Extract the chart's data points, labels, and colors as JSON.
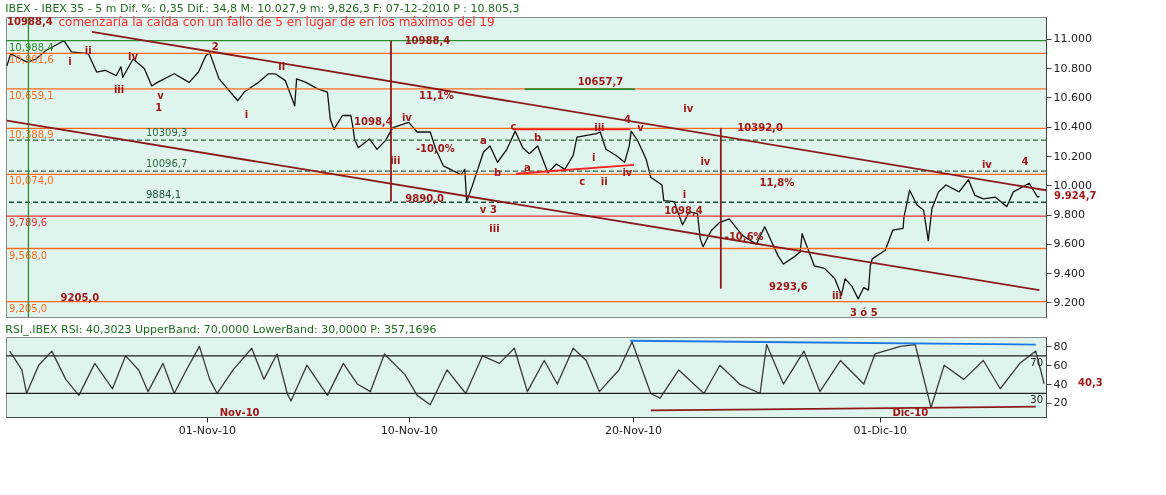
{
  "chart_data": [
    {
      "type": "line",
      "title": "IBEX - IBEX 35 -  5 m Dif. %: 0,35 Dif.: 34,8 M: 10.027,9 m: 9,826,3 F: 07-12-2010 P : 10.805,3",
      "xlim": [
        "2010-10-23T01:00",
        "2010-12-08T10:00"
      ],
      "ylim": [
        9100,
        11150
      ],
      "yticks": [
        {
          "value": 9200,
          "label": "9.200"
        },
        {
          "value": 9400,
          "label": "9.400"
        },
        {
          "value": 9600,
          "label": "9.600"
        },
        {
          "value": 9800,
          "label": "9.800"
        },
        {
          "value": 10000,
          "label": "10.000"
        },
        {
          "value": 10200,
          "label": "10.200"
        },
        {
          "value": 10400,
          "label": "10.400"
        },
        {
          "value": 10600,
          "label": "10.600"
        },
        {
          "value": 10800,
          "label": "10.800"
        },
        {
          "value": 11000,
          "label": "11.000"
        }
      ],
      "tick_labels": "y",
      "series": [
        {
          "color": "#111111",
          "x": [
            "2010-10-23T02:00",
            "2010-10-23T06:00",
            "2010-10-24T00:00",
            "2010-10-24T09:00",
            "2010-10-24T20:00",
            "2010-10-25T15:00",
            "2010-10-25T23:00",
            "2010-10-26T17:00",
            "2010-10-27T02:00",
            "2010-10-27T11:00",
            "2010-10-27T23:00",
            "2010-10-28T04:00",
            "2010-10-28T06:00",
            "2010-10-28T17:00",
            "2010-10-29T05:00",
            "2010-10-29T13:00",
            "2010-10-29T19:00",
            "2010-10-30T13:00",
            "2010-10-31T05:00",
            "2010-10-31T15:00",
            "2010-10-31T23:00",
            "2010-11-01T03:00",
            "2010-11-01T13:00",
            "2010-11-02T09:00",
            "2010-11-02T16:00",
            "2010-11-03T07:00",
            "2010-11-03T18:00",
            "2010-11-04T01:00",
            "2010-11-04T12:00",
            "2010-11-04T22:00",
            "2010-11-05T00:00",
            "2010-11-05T10:00",
            "2010-11-05T22:00",
            "2010-11-06T09:00",
            "2010-11-06T12:00",
            "2010-11-06T16:00",
            "2010-11-07T01:00",
            "2010-11-07T10:00",
            "2010-11-07T12:00",
            "2010-11-07T14:00",
            "2010-11-07T18:00",
            "2010-11-08T06:00",
            "2010-11-08T14:00",
            "2010-11-08T23:00",
            "2010-11-09T07:00",
            "2010-11-10T00:00",
            "2010-11-10T09:00",
            "2010-11-10T23:00",
            "2010-11-11T05:00",
            "2010-11-11T13:00",
            "2010-11-12T08:00",
            "2010-11-12T12:00",
            "2010-11-12T14:00",
            "2010-11-12T20:00",
            "2010-11-13T08:00",
            "2010-11-13T15:00",
            "2010-11-13T23:00",
            "2010-11-14T09:00",
            "2010-11-14T18:00",
            "2010-11-15T02:00",
            "2010-11-15T09:00",
            "2010-11-15T18:00",
            "2010-11-16T05:00",
            "2010-11-16T14:00",
            "2010-11-16T23:00",
            "2010-11-17T08:00",
            "2010-11-17T12:00",
            "2010-11-18T09:00",
            "2010-11-18T13:00",
            "2010-11-18T19:00",
            "2010-11-19T06:00",
            "2010-11-19T15:00",
            "2010-11-19T20:00",
            "2010-11-19T22:00",
            "2010-11-20T05:00",
            "2010-11-20T14:00",
            "2010-11-20T19:00",
            "2010-11-21T07:00",
            "2010-11-21T09:00",
            "2010-11-21T20:00",
            "2010-11-22T05:00",
            "2010-11-22T12:00",
            "2010-11-22T21:00",
            "2010-11-23T00:00",
            "2010-11-23T03:00",
            "2010-11-23T12:00",
            "2010-11-23T21:00",
            "2010-11-24T07:00",
            "2010-11-24T21:00",
            "2010-11-25T12:00",
            "2010-11-25T21:00",
            "2010-11-26T11:00",
            "2010-11-26T17:00",
            "2010-11-27T04:00",
            "2010-11-27T11:00",
            "2010-11-27T13:00",
            "2010-11-28T02:00",
            "2010-11-28T13:00",
            "2010-11-29T00:00",
            "2010-11-29T07:00",
            "2010-11-29T11:00",
            "2010-11-29T18:00",
            "2010-11-30T01:00",
            "2010-11-30T07:00",
            "2010-11-30T12:00",
            "2010-11-30T14:00",
            "2010-11-30T16:00",
            "2010-12-01T06:00",
            "2010-12-01T14:00",
            "2010-12-02T01:00",
            "2010-12-02T02:00",
            "2010-12-02T08:00",
            "2010-12-02T16:00",
            "2010-12-02T23:00",
            "2010-12-03T04:00",
            "2010-12-03T08:00",
            "2010-12-03T15:00",
            "2010-12-03T23:00",
            "2010-12-04T13:00",
            "2010-12-04T23:00",
            "2010-12-05T06:00",
            "2010-12-05T15:00",
            "2010-12-06T04:00",
            "2010-12-06T16:00",
            "2010-12-06T23:00",
            "2010-12-07T16:00",
            "2010-12-08T01:00",
            "2010-12-08T03:00"
          ],
          "values": [
            10816,
            10899,
            10840,
            10863,
            10923,
            10988,
            10911,
            10899,
            10774,
            10786,
            10750,
            10810,
            10738,
            10863,
            10798,
            10679,
            10703,
            10762,
            10703,
            10774,
            10887,
            10905,
            10727,
            10578,
            10637,
            10703,
            10762,
            10762,
            10715,
            10543,
            10727,
            10703,
            10661,
            10637,
            10453,
            10382,
            10477,
            10477,
            10406,
            10317,
            10257,
            10317,
            10246,
            10305,
            10394,
            10430,
            10364,
            10364,
            10246,
            10133,
            10073,
            10109,
            9889,
            9996,
            10228,
            10269,
            10157,
            10246,
            10370,
            10257,
            10216,
            10269,
            10085,
            10145,
            10109,
            10204,
            10329,
            10353,
            10364,
            10246,
            10204,
            10157,
            10269,
            10370,
            10305,
            10180,
            10055,
            10002,
            9895,
            9889,
            9729,
            9818,
            9806,
            9634,
            9580,
            9693,
            9747,
            9770,
            9658,
            9598,
            9717,
            9521,
            9462,
            9509,
            9545,
            9669,
            9450,
            9432,
            9361,
            9248,
            9361,
            9313,
            9224,
            9301,
            9284,
            9450,
            9497,
            9556,
            9693,
            9705,
            9782,
            9966,
            9865,
            9830,
            9622,
            9842,
            9955,
            10002,
            9955,
            10038,
            9931,
            9907,
            9919,
            9854,
            9955,
            10014,
            9919,
            9925
          ]
        },
        {
          "color": "#8b1a1a",
          "x": [
            "2010-10-26T21:00",
            "2010-12-08T10:00"
          ],
          "values": [
            11049,
            9966
          ]
        },
        {
          "color": "#8b1a1a",
          "x": [
            "2010-10-23T02:00",
            "2010-12-08T03:00"
          ],
          "values": [
            10442,
            9283
          ]
        },
        {
          "color": "#ff2020",
          "x": [
            "2010-11-14T16:00",
            "2010-11-19T21:00"
          ],
          "values": [
            10382,
            10382
          ]
        },
        {
          "color": "#ff2020",
          "x": [
            "2010-11-14T19:00",
            "2010-11-20T01:00"
          ],
          "values": [
            10079,
            10139
          ]
        },
        {
          "color": "#2e8b2e",
          "x": [
            "2010-11-15T04:00",
            "2010-11-20T02:00"
          ],
          "values": [
            10657.7,
            10657.7
          ]
        },
        {
          "color": "#8b1a1a",
          "x": [
            "2010-11-09T05:00",
            "2010-11-09T05:00"
          ],
          "values": [
            10988.4,
            9890.0
          ]
        },
        {
          "color": "#8b1a1a",
          "x": [
            "2010-11-23T22:00",
            "2010-11-23T22:00"
          ],
          "values": [
            10392.0,
            9293.6
          ]
        }
      ],
      "ref_lines": [
        {
          "axis": "y",
          "value": 10988.4,
          "label": "10,988,4",
          "color": "#2e8b2e"
        },
        {
          "axis": "y",
          "value": 10901.6,
          "label": "10,901,6",
          "color": "#ff6a1a"
        },
        {
          "axis": "y",
          "value": 10659.1,
          "label": "10,659,1",
          "color": "#ff6a1a"
        },
        {
          "axis": "y",
          "value": 10388.9,
          "label": "10,388,9",
          "color": "#ff6a1a"
        },
        {
          "axis": "y",
          "value": 10309.3,
          "label": "10309,3",
          "color": "#2e6b3e",
          "line_style": "dashed"
        },
        {
          "axis": "y",
          "value": 10096.7,
          "label": "10096,7",
          "color": "#2e6b3e",
          "line_style": "dashed"
        },
        {
          "axis": "y",
          "value": 10074.0,
          "label": "10,074,0",
          "color": "#ff6a1a"
        },
        {
          "axis": "y",
          "value": 9884.1,
          "label": "9884,1",
          "color": "#1f4f3f",
          "line_style": "dashed"
        },
        {
          "axis": "y",
          "value": 9789.6,
          "label": "9,789,6",
          "color": "#e83030"
        },
        {
          "axis": "y",
          "value": 9568.0,
          "label": "9,568,0",
          "color": "#ff6a1a"
        },
        {
          "axis": "y",
          "value": 9205.0,
          "label": "9,205,0",
          "color": "#ff6a1a"
        },
        {
          "axis": "x",
          "value": "2010-10-24T01:00",
          "color": "#2e8b2e"
        }
      ],
      "annotations": [
        "comenzaría la caída con un fallo de 5 en lugar de en los máximos del 19",
        "10988,4",
        {
          "text": "9205,0",
          "x": "2010-10-26T08:00",
          "y": 9230
        },
        "i",
        {
          "text": "ii",
          "x": "2010-10-26T17:00",
          "y": 10920
        },
        {
          "text": "iii",
          "x": "2010-10-28T02:00",
          "y": 10650
        },
        {
          "text": "iv",
          "x": "2010-10-28T17:00",
          "y": 10875
        },
        "v",
        "1",
        {
          "text": "2",
          "x": "2010-11-01T09:00",
          "y": 10947
        },
        "i",
        "ii",
        "iii",
        {
          "text": "iv",
          "x": "2010-11-09T22:00",
          "y": 10459
        },
        "1098,4",
        {
          "text": "10988,4",
          "x": "2010-11-10T20:00",
          "y": 10988
        },
        "11,1%",
        "-10,0%",
        {
          "text": "9890,0",
          "x": "2010-11-10T17:00",
          "y": 9907
        },
        "v",
        "3",
        "iii",
        {
          "text": "a",
          "x": "2010-11-13T08:00",
          "y": 10305
        },
        {
          "text": "b",
          "x": "2010-11-13T23:00",
          "y": 10085
        },
        {
          "text": "c",
          "x": "2010-11-14T16:00",
          "y": 10400
        },
        {
          "text": "a",
          "x": "2010-11-15T07:00",
          "y": 10115
        },
        {
          "text": "b",
          "x": "2010-11-15T18:00",
          "y": 10323
        },
        "c",
        "i",
        "ii",
        {
          "text": "iii",
          "x": "2010-11-18T12:00",
          "y": 10394
        },
        {
          "text": "iv",
          "x": "2010-11-19T18:00",
          "y": 10085
        },
        {
          "text": "4",
          "x": "2010-11-19T18:00",
          "y": 10448
        },
        "iv",
        {
          "text": "v",
          "x": "2010-11-20T08:00",
          "y": 10394
        },
        "iv",
        "i",
        "10657,7",
        "11,8%",
        {
          "text": "1098,4",
          "x": "2010-11-22T06:00",
          "y": 9824
        },
        {
          "text": "-10,6%",
          "x": "2010-11-24T23:00",
          "y": 9646
        },
        {
          "text": "10392,0",
          "x": "2010-11-25T16:00",
          "y": 10394
        },
        "9293,6",
        "iii",
        "3 ó 5",
        "iv",
        "4",
        "9.924,7"
      ]
    },
    {
      "type": "line",
      "title": "RSI_.IBEX RSI: 40,3023 UpperBand: 70,0000 LowerBand: 30,0000 P: 357,1696",
      "xlim": [
        "2010-10-23T01:00",
        "2010-12-08T10:00"
      ],
      "ylim": [
        5,
        90
      ],
      "xticks": [
        {
          "value": "2010-11-01T00:00",
          "label": "01-Nov-10"
        },
        {
          "value": "2010-11-10T00:00",
          "label": "10-Nov-10"
        },
        {
          "value": "2010-11-20T00:00",
          "label": "20-Nov-10"
        },
        {
          "value": "2010-12-01T00:00",
          "label": "01-Dic-10"
        }
      ],
      "yticks": [
        20,
        40,
        60,
        80
      ],
      "series": [
        {
          "color": "#3a3a3a",
          "x": [
            "2010-10-23T05:00",
            "2010-10-23T18:00",
            "2010-10-23T23:00",
            "2010-10-24T12:00",
            "2010-10-25T02:00",
            "2010-10-25T17:00",
            "2010-10-26T07:00",
            "2010-10-27T00:00",
            "2010-10-27T19:00",
            "2010-10-28T09:00",
            "2010-10-28T23:00",
            "2010-10-29T09:00",
            "2010-10-30T01:00",
            "2010-10-30T13:00",
            "2010-10-31T02:00",
            "2010-10-31T16:00",
            "2010-11-01T03:00",
            "2010-11-01T11:00",
            "2010-11-02T04:00",
            "2010-11-03T00:00",
            "2010-11-03T13:00",
            "2010-11-04T03:00",
            "2010-11-04T14:00",
            "2010-11-04T18:00",
            "2010-11-05T11:00",
            "2010-11-06T09:00",
            "2010-11-07T02:00",
            "2010-11-07T17:00",
            "2010-11-08T07:00",
            "2010-11-08T22:00",
            "2010-11-09T20:00",
            "2010-11-10T09:00",
            "2010-11-10T23:00",
            "2010-11-11T17:00",
            "2010-11-12T13:00",
            "2010-11-13T07:00",
            "2010-11-14T01:00",
            "2010-11-14T17:00",
            "2010-11-15T07:00",
            "2010-11-16T01:00",
            "2010-11-16T15:00",
            "2010-11-17T08:00",
            "2010-11-17T22:00",
            "2010-11-18T12:00",
            "2010-11-19T09:00",
            "2010-11-19T23:00",
            "2010-11-20T19:00",
            "2010-11-21T05:00",
            "2010-11-22T01:00",
            "2010-11-23T04:00",
            "2010-11-23T21:00",
            "2010-11-24T18:00",
            "2010-11-25T16:00",
            "2010-11-25T23:00",
            "2010-11-26T17:00",
            "2010-11-27T15:00",
            "2010-11-28T08:00",
            "2010-11-29T06:00",
            "2010-11-30T07:00",
            "2010-11-30T19:00",
            "2010-12-01T22:00",
            "2010-12-02T14:00",
            "2010-12-03T07:00",
            "2010-12-03T21:00",
            "2010-12-04T18:00",
            "2010-12-05T15:00",
            "2010-12-06T09:00",
            "2010-12-07T06:00",
            "2010-12-07T23:00",
            "2010-12-08T08:00"
          ],
          "values": [
            75,
            55,
            30,
            60,
            75,
            45,
            28,
            62,
            35,
            70,
            55,
            32,
            62,
            30,
            55,
            80,
            45,
            30,
            55,
            78,
            45,
            72,
            30,
            22,
            60,
            28,
            62,
            40,
            32,
            72,
            50,
            28,
            18,
            55,
            30,
            70,
            62,
            78,
            32,
            65,
            40,
            78,
            65,
            32,
            55,
            85,
            30,
            25,
            55,
            30,
            60,
            40,
            30,
            82,
            40,
            75,
            32,
            65,
            40,
            72,
            80,
            82,
            15,
            60,
            45,
            65,
            35,
            62,
            75,
            40.3
          ]
        },
        {
          "color": "#1e78e6",
          "x": [
            "2010-11-19T21:00",
            "2010-12-07T23:00"
          ],
          "values": [
            86,
            82
          ]
        },
        {
          "color": "#8b1a1a",
          "x": [
            "2010-11-20T19:00",
            "2010-12-07T23:00"
          ],
          "values": [
            12,
            16
          ]
        }
      ],
      "ref_lines": [
        {
          "axis": "y",
          "value": 70,
          "label": "70",
          "color": "#222222"
        },
        {
          "axis": "y",
          "value": 30,
          "label": "30",
          "color": "#222222"
        }
      ],
      "annotations": [
        "Nov-10",
        "Dic-10",
        "40,3"
      ]
    }
  ]
}
